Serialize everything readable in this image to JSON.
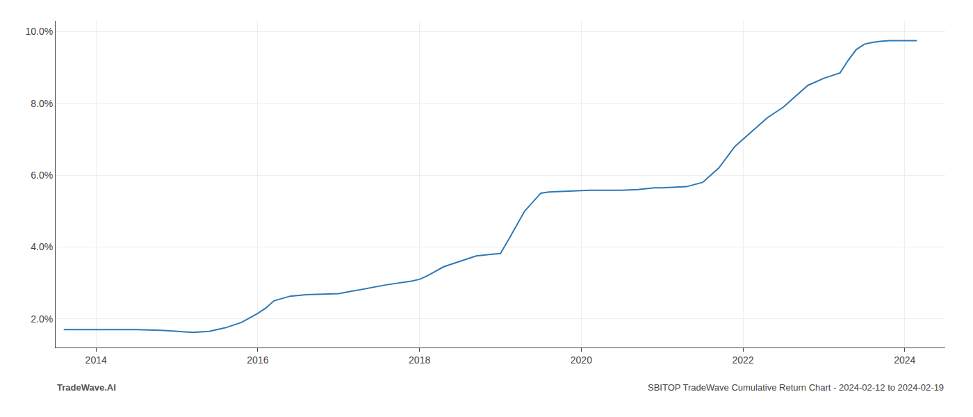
{
  "chart_data": {
    "type": "line",
    "x": [
      2013.6,
      2013.8,
      2014.0,
      2014.2,
      2014.5,
      2014.8,
      2015.0,
      2015.1,
      2015.15,
      2015.2,
      2015.4,
      2015.6,
      2015.8,
      2016.0,
      2016.1,
      2016.2,
      2016.4,
      2016.5,
      2016.6,
      2017.0,
      2017.3,
      2017.6,
      2017.9,
      2018.0,
      2018.1,
      2018.3,
      2018.5,
      2018.7,
      2018.9,
      2019.0,
      2019.1,
      2019.3,
      2019.5,
      2019.6,
      2019.7,
      2019.8,
      2019.9,
      2020.0,
      2020.1,
      2020.3,
      2020.5,
      2020.7,
      2020.9,
      2021.0,
      2021.1,
      2021.2,
      2021.3,
      2021.5,
      2021.7,
      2021.9,
      2022.0,
      2022.1,
      2022.2,
      2022.3,
      2022.5,
      2022.6,
      2022.7,
      2022.8,
      2023.0,
      2023.2,
      2023.3,
      2023.4,
      2023.5,
      2023.6,
      2023.7,
      2023.8,
      2024.0,
      2024.15
    ],
    "values": [
      1.7,
      1.7,
      1.7,
      1.7,
      1.7,
      1.68,
      1.65,
      1.63,
      1.62,
      1.62,
      1.65,
      1.75,
      1.9,
      2.15,
      2.3,
      2.5,
      2.63,
      2.65,
      2.67,
      2.7,
      2.82,
      2.95,
      3.05,
      3.1,
      3.2,
      3.45,
      3.6,
      3.75,
      3.8,
      3.82,
      4.2,
      5.0,
      5.5,
      5.53,
      5.54,
      5.55,
      5.56,
      5.58,
      5.58,
      5.58,
      5.58,
      5.6,
      5.65,
      5.65,
      5.66,
      5.67,
      5.68,
      5.8,
      6.2,
      6.8,
      7.0,
      7.2,
      7.4,
      7.6,
      7.9,
      8.1,
      8.3,
      8.5,
      8.7,
      8.85,
      9.2,
      9.5,
      9.65,
      9.7,
      9.73,
      9.75,
      9.75,
      9.75
    ],
    "color": "#2e78b5",
    "xlim": [
      2013.5,
      2024.5
    ],
    "ylim": [
      1.2,
      10.3
    ],
    "xticks": [
      2014,
      2016,
      2018,
      2020,
      2022,
      2024
    ],
    "yticks": [
      {
        "value": 2.0,
        "label": "2.0%"
      },
      {
        "value": 4.0,
        "label": "4.0%"
      },
      {
        "value": 6.0,
        "label": "6.0%"
      },
      {
        "value": 8.0,
        "label": "8.0%"
      },
      {
        "value": 10.0,
        "label": "10.0%"
      }
    ],
    "grid": true,
    "annotations": [
      "TradeWave.AI",
      "SBITOP TradeWave Cumulative Return Chart - 2024-02-12 to 2024-02-19"
    ]
  }
}
